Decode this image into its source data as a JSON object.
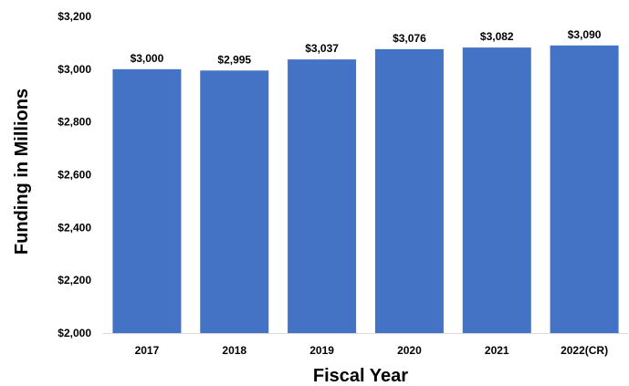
{
  "chart_data": {
    "type": "bar",
    "categories": [
      "2017",
      "2018",
      "2019",
      "2020",
      "2021",
      "2022(CR)"
    ],
    "values": [
      3000,
      2995,
      3037,
      3076,
      3082,
      3090
    ],
    "data_labels": [
      "$3,000",
      "$2,995",
      "$3,037",
      "$3,076",
      "$3,082",
      "$3,090"
    ],
    "xlabel": "Fiscal Year",
    "ylabel": "Funding in Millions",
    "ylim": [
      2000,
      3200
    ],
    "yticks": [
      2000,
      2200,
      2400,
      2600,
      2800,
      3000,
      3200
    ],
    "ytick_labels": [
      "$2,000",
      "$2,200",
      "$2,400",
      "$2,600",
      "$2,800",
      "$3,000",
      "$3,200"
    ],
    "grid": false,
    "colors": {
      "bar": "#4472C4",
      "axis": "#000000"
    }
  }
}
